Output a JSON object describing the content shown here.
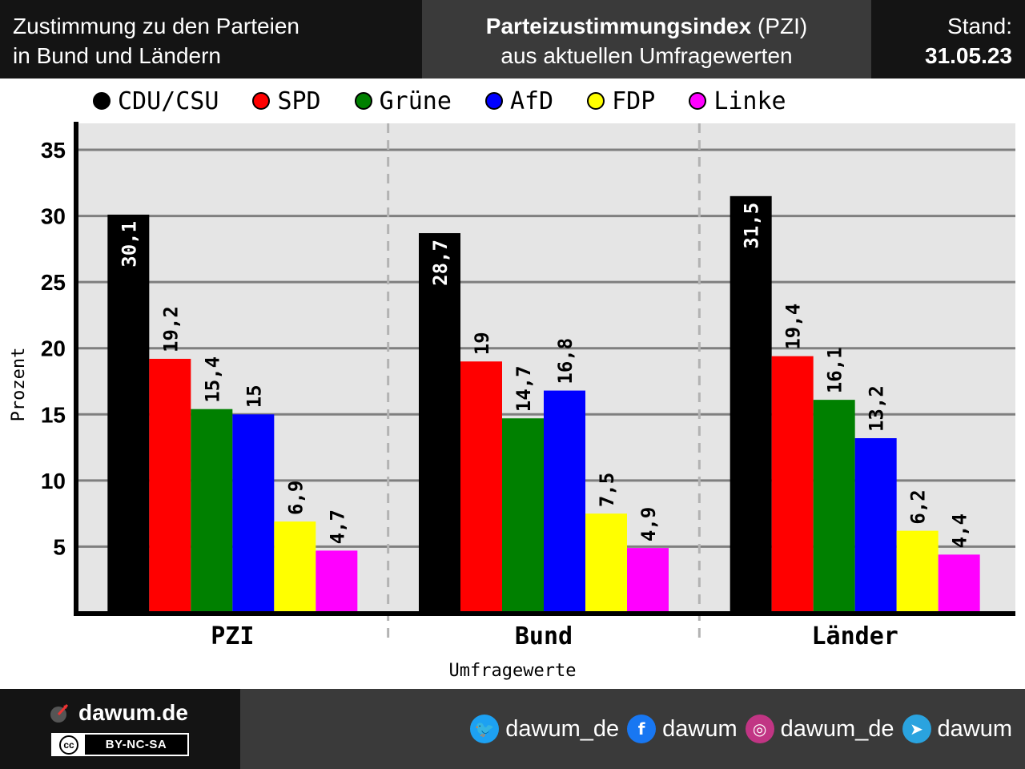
{
  "header": {
    "left_line1": "Zustimmung zu den Parteien",
    "left_line2": "in Bund und Ländern",
    "title_bold": "Parteizustimmungsindex",
    "title_rest": " (PZI)",
    "subtitle": "aus aktuellen Umfragewerten",
    "stand_label": "Stand:",
    "stand_date": "31.05.23"
  },
  "chart_data": {
    "type": "bar",
    "categories": [
      "PZI",
      "Bund",
      "Länder"
    ],
    "series": [
      {
        "name": "CDU/CSU",
        "color": "#000000",
        "values": [
          30.1,
          28.7,
          31.5
        ],
        "labels": [
          "30,1",
          "28,7",
          "31,5"
        ]
      },
      {
        "name": "SPD",
        "color": "#ff0000",
        "values": [
          19.2,
          19,
          19.4
        ],
        "labels": [
          "19,2",
          "19",
          "19,4"
        ]
      },
      {
        "name": "Grüne",
        "color": "#008000",
        "values": [
          15.4,
          14.7,
          16.1
        ],
        "labels": [
          "15,4",
          "14,7",
          "16,1"
        ]
      },
      {
        "name": "AfD",
        "color": "#0000ff",
        "values": [
          15,
          16.8,
          13.2
        ],
        "labels": [
          "15",
          "16,8",
          "13,2"
        ]
      },
      {
        "name": "FDP",
        "color": "#ffff00",
        "values": [
          6.9,
          7.5,
          6.2
        ],
        "labels": [
          "6,9",
          "7,5",
          "6,2"
        ]
      },
      {
        "name": "Linke",
        "color": "#ff00ff",
        "values": [
          4.7,
          4.9,
          4.4
        ],
        "labels": [
          "4,7",
          "4,9",
          "4,4"
        ]
      }
    ],
    "yticks": [
      5,
      10,
      15,
      20,
      25,
      30,
      35
    ],
    "ylim": [
      0,
      37
    ],
    "xlabel": "Umfragewerte",
    "ylabel": "Prozent",
    "grid": true,
    "legend_position": "top"
  },
  "footer": {
    "brand": "dawum.de",
    "license": "BY-NC-SA",
    "license_icon": "cc",
    "socials": [
      {
        "icon": "twitter-icon",
        "color": "#1da1f2",
        "label": "dawum_de"
      },
      {
        "icon": "facebook-icon",
        "color": "#1877f2",
        "label": "dawum"
      },
      {
        "icon": "instagram-icon",
        "color": "#c13584",
        "label": "dawum_de"
      },
      {
        "icon": "telegram-icon",
        "color": "#2aa3df",
        "label": "dawum"
      }
    ]
  }
}
